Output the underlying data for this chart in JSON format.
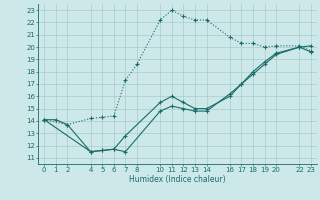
{
  "title": "",
  "xlabel": "Humidex (Indice chaleur)",
  "bg_color": "#cce8e8",
  "line_color": "#1a6b6b",
  "grid_color": "#aacccc",
  "xlim": [
    -0.5,
    23.5
  ],
  "ylim": [
    10.5,
    23.5
  ],
  "xticks": [
    0,
    1,
    2,
    4,
    5,
    6,
    7,
    8,
    10,
    11,
    12,
    13,
    14,
    16,
    17,
    18,
    19,
    20,
    22,
    23
  ],
  "yticks": [
    11,
    12,
    13,
    14,
    15,
    16,
    17,
    18,
    19,
    20,
    21,
    22,
    23
  ],
  "line1_dotted": {
    "x": [
      0,
      2,
      4,
      5,
      6,
      7,
      8,
      10,
      11,
      12,
      13,
      14,
      16,
      17,
      18,
      19,
      20,
      22,
      23
    ],
    "y": [
      14.1,
      13.7,
      14.2,
      14.3,
      14.4,
      17.3,
      18.6,
      22.2,
      23.0,
      22.5,
      22.2,
      22.2,
      20.8,
      20.3,
      20.3,
      20.0,
      20.1,
      20.1,
      19.7
    ]
  },
  "line2_solid_lower": {
    "x": [
      0,
      1,
      2,
      4,
      5,
      6,
      7,
      10,
      11,
      12,
      13,
      14,
      16,
      17,
      18,
      19,
      20,
      22,
      23
    ],
    "y": [
      14.1,
      14.1,
      13.7,
      11.5,
      11.6,
      11.7,
      11.5,
      14.8,
      15.2,
      15.0,
      14.8,
      14.8,
      16.2,
      17.0,
      17.8,
      18.6,
      19.4,
      20.0,
      19.6
    ]
  },
  "line3_solid_upper": {
    "x": [
      0,
      4,
      5,
      6,
      7,
      10,
      11,
      12,
      13,
      14,
      16,
      17,
      18,
      19,
      20,
      22,
      23
    ],
    "y": [
      14.1,
      11.5,
      11.6,
      11.7,
      12.8,
      15.5,
      16.0,
      15.5,
      15.0,
      15.0,
      16.0,
      17.0,
      18.0,
      18.8,
      19.5,
      20.0,
      20.1
    ]
  }
}
